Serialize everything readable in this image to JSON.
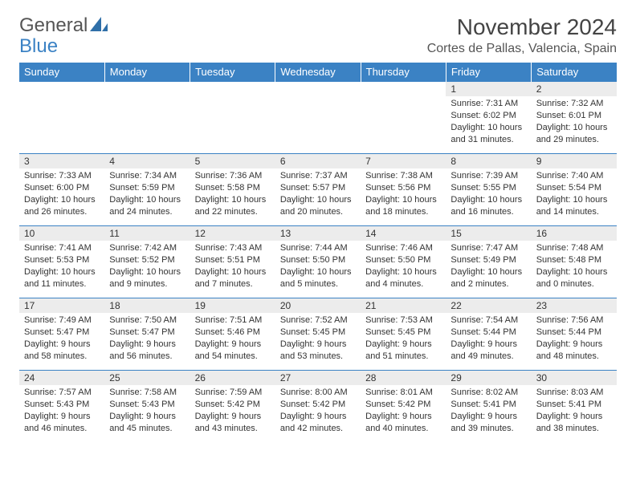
{
  "brand": {
    "line1": "General",
    "line2": "Blue"
  },
  "title": "November 2024",
  "location": "Cortes de Pallas, Valencia, Spain",
  "colors": {
    "header_bg": "#3b82c4",
    "header_text": "#ffffff",
    "daynum_bg": "#ececec",
    "border": "#3b82c4",
    "body_text": "#333333",
    "page_bg": "#ffffff"
  },
  "typography": {
    "title_fontsize": 28,
    "location_fontsize": 16,
    "dayhdr_fontsize": 13,
    "cell_fontsize": 11
  },
  "day_headers": [
    "Sunday",
    "Monday",
    "Tuesday",
    "Wednesday",
    "Thursday",
    "Friday",
    "Saturday"
  ],
  "weeks": [
    [
      null,
      null,
      null,
      null,
      null,
      {
        "n": "1",
        "sunrise": "7:31 AM",
        "sunset": "6:02 PM",
        "daylight": "10 hours and 31 minutes."
      },
      {
        "n": "2",
        "sunrise": "7:32 AM",
        "sunset": "6:01 PM",
        "daylight": "10 hours and 29 minutes."
      }
    ],
    [
      {
        "n": "3",
        "sunrise": "7:33 AM",
        "sunset": "6:00 PM",
        "daylight": "10 hours and 26 minutes."
      },
      {
        "n": "4",
        "sunrise": "7:34 AM",
        "sunset": "5:59 PM",
        "daylight": "10 hours and 24 minutes."
      },
      {
        "n": "5",
        "sunrise": "7:36 AM",
        "sunset": "5:58 PM",
        "daylight": "10 hours and 22 minutes."
      },
      {
        "n": "6",
        "sunrise": "7:37 AM",
        "sunset": "5:57 PM",
        "daylight": "10 hours and 20 minutes."
      },
      {
        "n": "7",
        "sunrise": "7:38 AM",
        "sunset": "5:56 PM",
        "daylight": "10 hours and 18 minutes."
      },
      {
        "n": "8",
        "sunrise": "7:39 AM",
        "sunset": "5:55 PM",
        "daylight": "10 hours and 16 minutes."
      },
      {
        "n": "9",
        "sunrise": "7:40 AM",
        "sunset": "5:54 PM",
        "daylight": "10 hours and 14 minutes."
      }
    ],
    [
      {
        "n": "10",
        "sunrise": "7:41 AM",
        "sunset": "5:53 PM",
        "daylight": "10 hours and 11 minutes."
      },
      {
        "n": "11",
        "sunrise": "7:42 AM",
        "sunset": "5:52 PM",
        "daylight": "10 hours and 9 minutes."
      },
      {
        "n": "12",
        "sunrise": "7:43 AM",
        "sunset": "5:51 PM",
        "daylight": "10 hours and 7 minutes."
      },
      {
        "n": "13",
        "sunrise": "7:44 AM",
        "sunset": "5:50 PM",
        "daylight": "10 hours and 5 minutes."
      },
      {
        "n": "14",
        "sunrise": "7:46 AM",
        "sunset": "5:50 PM",
        "daylight": "10 hours and 4 minutes."
      },
      {
        "n": "15",
        "sunrise": "7:47 AM",
        "sunset": "5:49 PM",
        "daylight": "10 hours and 2 minutes."
      },
      {
        "n": "16",
        "sunrise": "7:48 AM",
        "sunset": "5:48 PM",
        "daylight": "10 hours and 0 minutes."
      }
    ],
    [
      {
        "n": "17",
        "sunrise": "7:49 AM",
        "sunset": "5:47 PM",
        "daylight": "9 hours and 58 minutes."
      },
      {
        "n": "18",
        "sunrise": "7:50 AM",
        "sunset": "5:47 PM",
        "daylight": "9 hours and 56 minutes."
      },
      {
        "n": "19",
        "sunrise": "7:51 AM",
        "sunset": "5:46 PM",
        "daylight": "9 hours and 54 minutes."
      },
      {
        "n": "20",
        "sunrise": "7:52 AM",
        "sunset": "5:45 PM",
        "daylight": "9 hours and 53 minutes."
      },
      {
        "n": "21",
        "sunrise": "7:53 AM",
        "sunset": "5:45 PM",
        "daylight": "9 hours and 51 minutes."
      },
      {
        "n": "22",
        "sunrise": "7:54 AM",
        "sunset": "5:44 PM",
        "daylight": "9 hours and 49 minutes."
      },
      {
        "n": "23",
        "sunrise": "7:56 AM",
        "sunset": "5:44 PM",
        "daylight": "9 hours and 48 minutes."
      }
    ],
    [
      {
        "n": "24",
        "sunrise": "7:57 AM",
        "sunset": "5:43 PM",
        "daylight": "9 hours and 46 minutes."
      },
      {
        "n": "25",
        "sunrise": "7:58 AM",
        "sunset": "5:43 PM",
        "daylight": "9 hours and 45 minutes."
      },
      {
        "n": "26",
        "sunrise": "7:59 AM",
        "sunset": "5:42 PM",
        "daylight": "9 hours and 43 minutes."
      },
      {
        "n": "27",
        "sunrise": "8:00 AM",
        "sunset": "5:42 PM",
        "daylight": "9 hours and 42 minutes."
      },
      {
        "n": "28",
        "sunrise": "8:01 AM",
        "sunset": "5:42 PM",
        "daylight": "9 hours and 40 minutes."
      },
      {
        "n": "29",
        "sunrise": "8:02 AM",
        "sunset": "5:41 PM",
        "daylight": "9 hours and 39 minutes."
      },
      {
        "n": "30",
        "sunrise": "8:03 AM",
        "sunset": "5:41 PM",
        "daylight": "9 hours and 38 minutes."
      }
    ]
  ],
  "labels": {
    "sunrise": "Sunrise:",
    "sunset": "Sunset:",
    "daylight": "Daylight:"
  }
}
